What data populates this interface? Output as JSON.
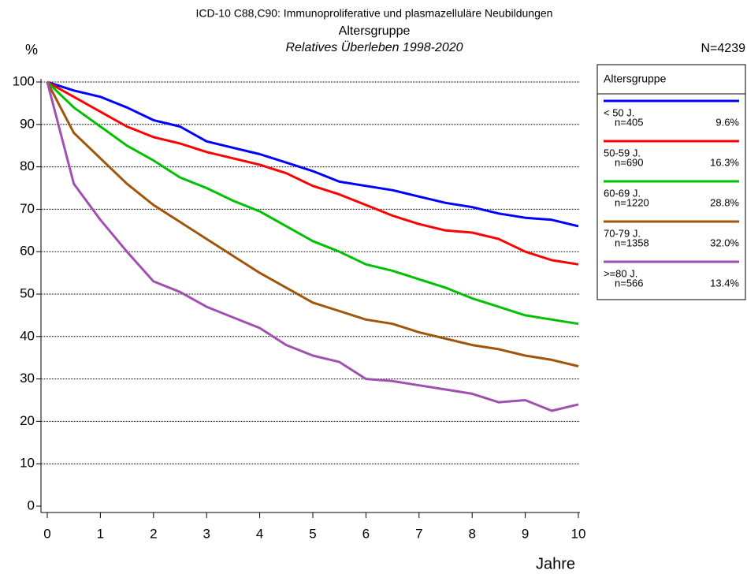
{
  "chart_data": {
    "type": "line",
    "title": "ICD-10 C88,C90: Immunoproliferative und plasmazelluläre Neubildungen",
    "subtitle": "Altersgruppe",
    "subtitle2": "Relatives Überleben 1998-2020",
    "y_label": "%",
    "x_label": "Jahre",
    "total_label": "N=4239",
    "legend_title": "Altersgruppe",
    "x": [
      0,
      0.5,
      1,
      1.5,
      2,
      2.5,
      3,
      3.5,
      4,
      4.5,
      5,
      5.5,
      6,
      6.5,
      7,
      7.5,
      8,
      8.5,
      9,
      9.5,
      10
    ],
    "series": [
      {
        "name": "< 50 J.",
        "n": "n=405",
        "share": "9.6%",
        "color": "#0000ff",
        "values": [
          100,
          98,
          96.5,
          94,
          91,
          89.5,
          86,
          84.5,
          83,
          81,
          79,
          76.5,
          75.5,
          74.5,
          73,
          71.5,
          70.5,
          69,
          68,
          67.5,
          66
        ]
      },
      {
        "name": "50-59 J.",
        "n": "n=690",
        "share": "16.3%",
        "color": "#ff0000",
        "values": [
          100,
          96.5,
          93,
          89.5,
          87,
          85.5,
          83.5,
          82,
          80.5,
          78.5,
          75.5,
          73.5,
          71,
          68.5,
          66.5,
          65,
          64.5,
          63,
          60,
          58,
          57
        ]
      },
      {
        "name": "60-69 J.",
        "n": "n=1220",
        "share": "28.8%",
        "color": "#00c000",
        "values": [
          100,
          94,
          89.5,
          85,
          81.5,
          77.5,
          75,
          72,
          69.5,
          66,
          62.5,
          60,
          57,
          55.5,
          53.5,
          51.5,
          49,
          47,
          45,
          44,
          43
        ]
      },
      {
        "name": "70-79 J.",
        "n": "n=1358",
        "share": "32.0%",
        "color": "#a0550a",
        "values": [
          100,
          88,
          82,
          76,
          71,
          67,
          63,
          59,
          55,
          51.5,
          48,
          46,
          44,
          43,
          41,
          39.5,
          38,
          37,
          35.5,
          34.5,
          33
        ]
      },
      {
        "name": ">=80 J.",
        "n": "n=566",
        "share": "13.4%",
        "color": "#a050b0",
        "values": [
          100,
          76,
          67.5,
          60,
          53,
          50.5,
          47,
          44.5,
          42,
          38,
          35.5,
          34,
          30,
          29.5,
          28.5,
          27.5,
          26.5,
          24.5,
          25,
          22.5,
          24
        ]
      }
    ],
    "xlim": [
      0,
      10
    ],
    "xticks": [
      0,
      1,
      2,
      3,
      4,
      5,
      6,
      7,
      8,
      9,
      10
    ],
    "ylim": [
      0,
      100
    ],
    "yticks": [
      0,
      10,
      20,
      30,
      40,
      50,
      60,
      70,
      80,
      90,
      100
    ],
    "grid": true
  }
}
